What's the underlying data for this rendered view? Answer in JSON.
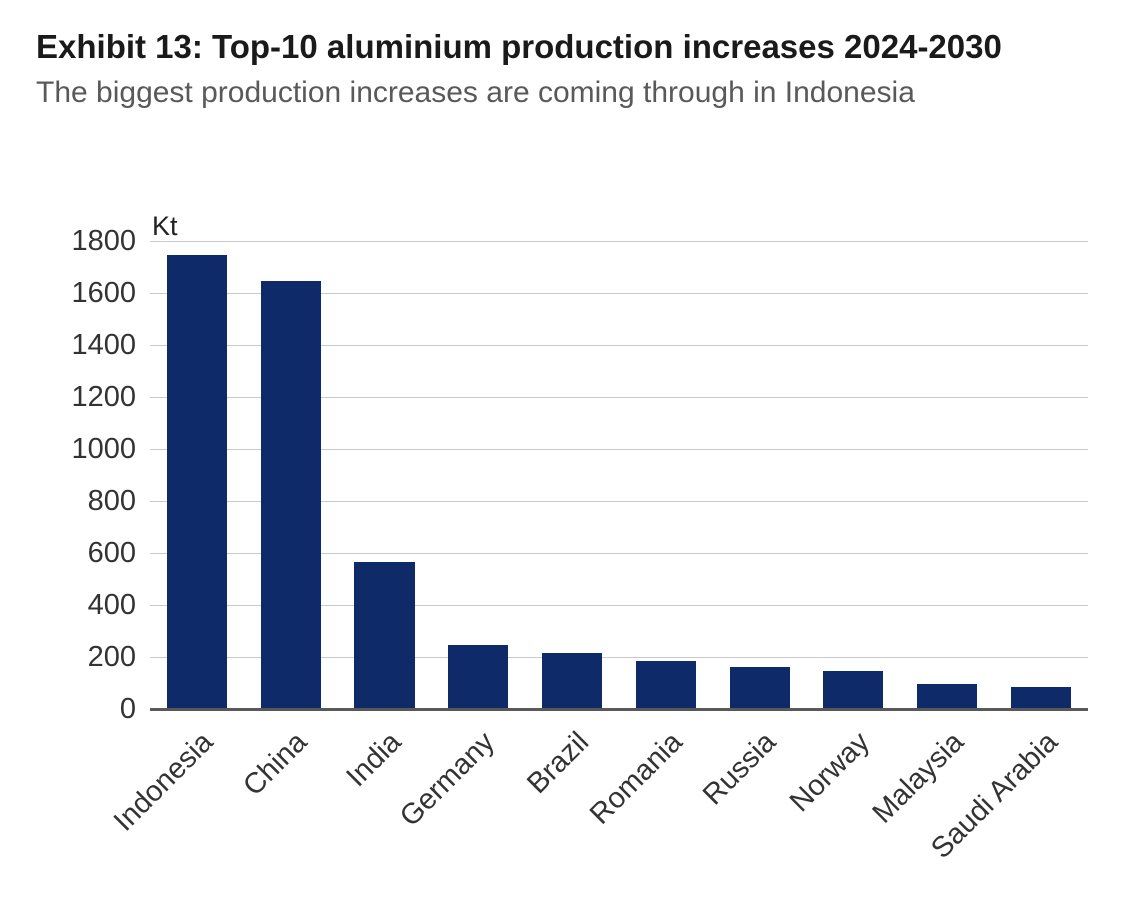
{
  "chart_data": {
    "type": "bar",
    "title": "Exhibit 13: Top-10 aluminium production increases 2024-2030",
    "subtitle": "The biggest production increases are coming through in Indonesia",
    "unit": "Kt",
    "categories": [
      "Indonesia",
      "China",
      "India",
      "Germany",
      "Brazil",
      "Romania",
      "Russia",
      "Norway",
      "Malaysia",
      "Saudi Arabia"
    ],
    "values": [
      1750,
      1650,
      570,
      250,
      220,
      190,
      165,
      150,
      100,
      90
    ],
    "ylim": [
      0,
      1800
    ],
    "yticks": [
      0,
      200,
      400,
      600,
      800,
      1000,
      1200,
      1400,
      1600,
      1800
    ],
    "xlabel": "",
    "ylabel": "Kt",
    "bar_color": "#0f2a68",
    "gridline_color": "#c9c9c9",
    "axis_color": "#595959",
    "grid": "horizontal",
    "legend": "none"
  }
}
